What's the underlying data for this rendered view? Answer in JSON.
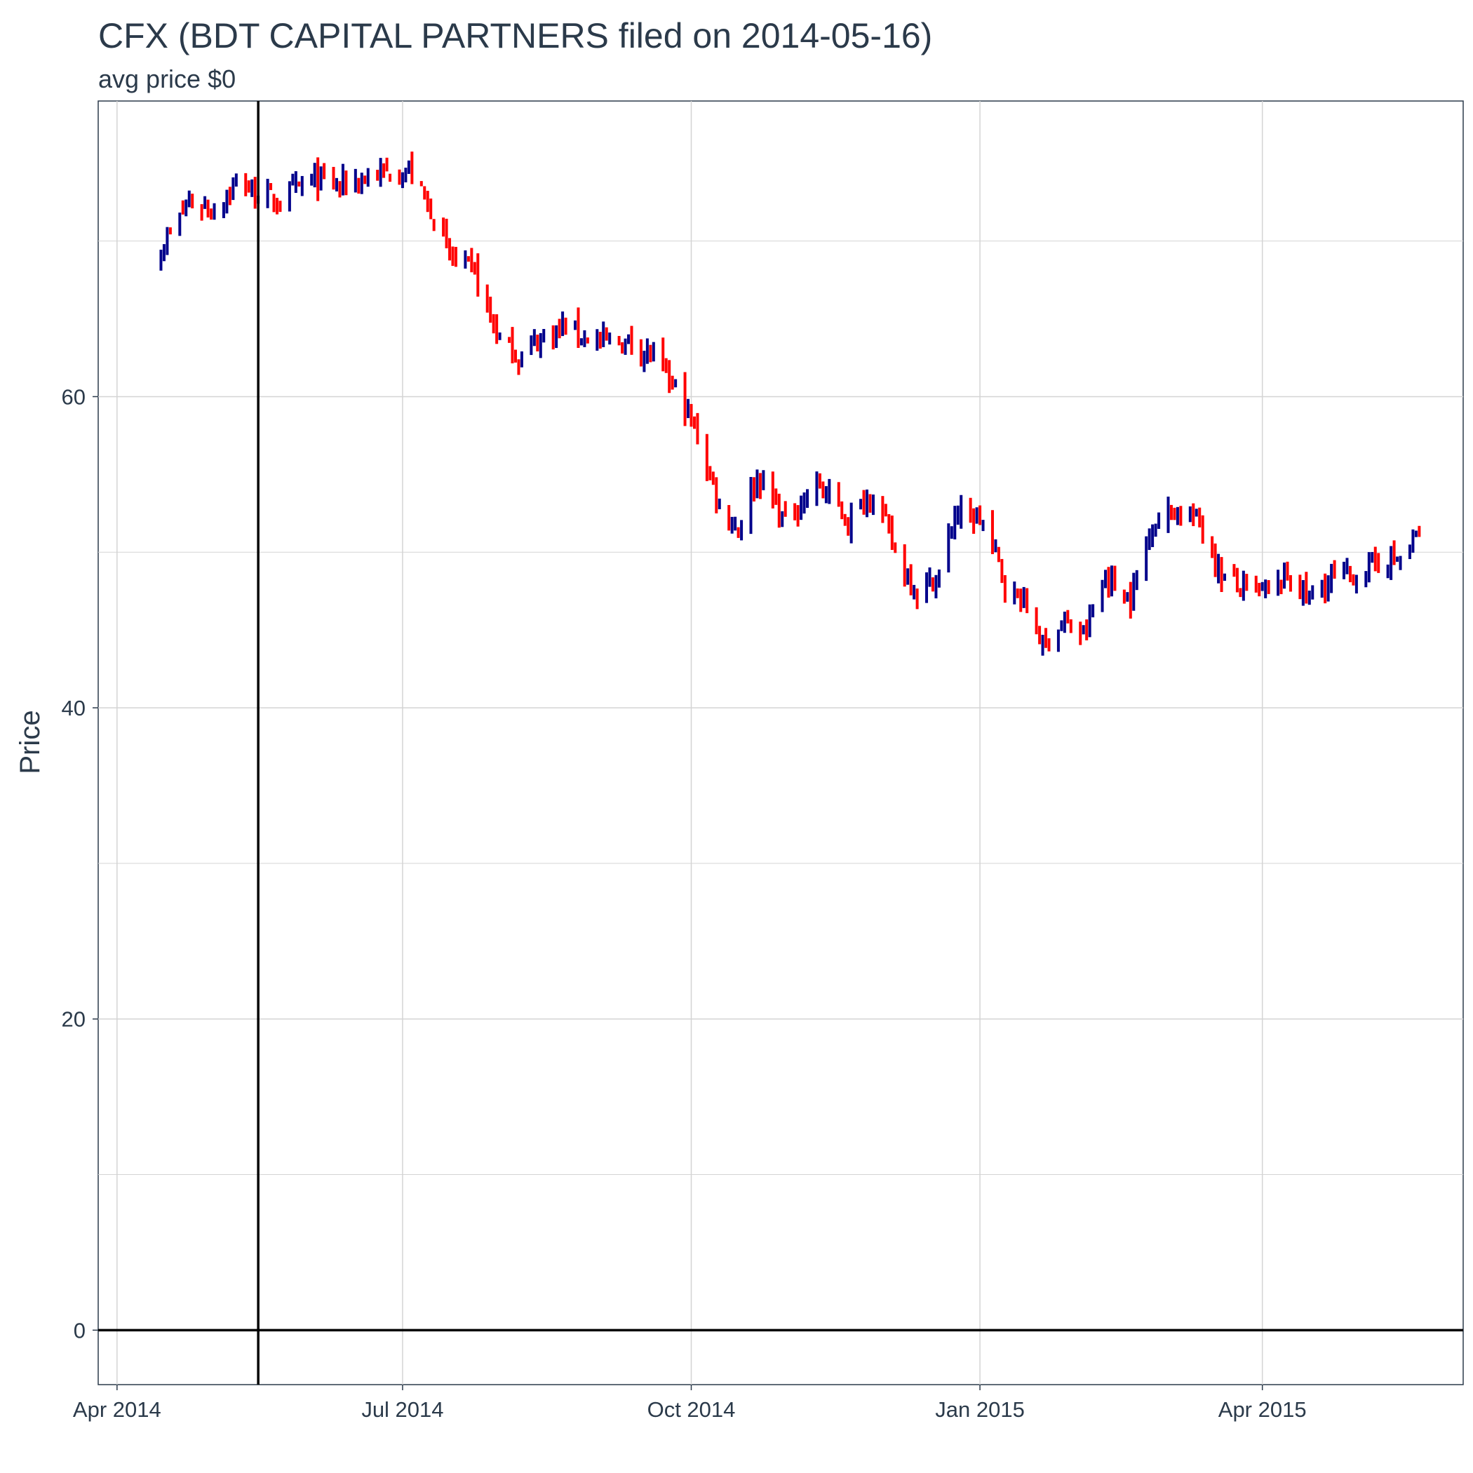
{
  "chart_data": {
    "type": "ohlc",
    "title": "CFX (BDT CAPITAL PARTNERS filed on 2014-05-16)",
    "subtitle": "avg price $0",
    "xlabel": "",
    "ylabel": "Price",
    "x_range": [
      "2014-03-26",
      "2015-06-04"
    ],
    "ylim": [
      -3.5,
      79
    ],
    "x_ticks": [
      {
        "date": "2014-04-01",
        "label": "Apr 2014"
      },
      {
        "date": "2014-07-01",
        "label": "Jul 2014"
      },
      {
        "date": "2014-10-01",
        "label": "Oct 2014"
      },
      {
        "date": "2015-01-01",
        "label": "Jan 2015"
      },
      {
        "date": "2015-04-01",
        "label": "Apr 2015"
      }
    ],
    "y_ticks": [
      0,
      20,
      40,
      60
    ],
    "y_minor_gridlines": [
      10,
      30,
      50,
      70
    ],
    "grid": true,
    "reference_lines": [
      {
        "orientation": "vertical",
        "date": "2014-05-16"
      },
      {
        "orientation": "horizontal",
        "value": 0
      }
    ],
    "colors": {
      "up": "#00008b",
      "down": "#ff0000",
      "grid": "#d4d4d4",
      "reference": "#000000"
    },
    "anchors": [
      [
        "2014-04-15",
        69.5
      ],
      [
        "2014-04-24",
        72.5
      ],
      [
        "2014-05-02",
        72.0
      ],
      [
        "2014-05-09",
        73.8
      ],
      [
        "2014-05-16",
        73.0
      ],
      [
        "2014-05-23",
        72.5
      ],
      [
        "2014-06-02",
        74.0
      ],
      [
        "2014-06-11",
        73.6
      ],
      [
        "2014-06-23",
        74.3
      ],
      [
        "2014-07-03",
        74.5
      ],
      [
        "2014-07-10",
        72.0
      ],
      [
        "2014-07-16",
        69.0
      ],
      [
        "2014-07-24",
        68.0
      ],
      [
        "2014-07-31",
        64.0
      ],
      [
        "2014-08-07",
        62.5
      ],
      [
        "2014-08-15",
        64.0
      ],
      [
        "2014-08-22",
        64.5
      ],
      [
        "2014-09-02",
        63.5
      ],
      [
        "2014-09-12",
        63.5
      ],
      [
        "2014-09-19",
        62.5
      ],
      [
        "2014-09-26",
        60.5
      ],
      [
        "2014-10-03",
        57.5
      ],
      [
        "2014-10-10",
        53.0
      ],
      [
        "2014-10-16",
        51.5
      ],
      [
        "2014-10-22",
        55.0
      ],
      [
        "2014-10-31",
        52.0
      ],
      [
        "2014-11-10",
        54.5
      ],
      [
        "2014-11-20",
        52.0
      ],
      [
        "2014-11-28",
        54.0
      ],
      [
        "2014-12-05",
        50.0
      ],
      [
        "2014-12-12",
        47.5
      ],
      [
        "2014-12-19",
        48.5
      ],
      [
        "2014-12-24",
        52.5
      ],
      [
        "2015-01-02",
        52.0
      ],
      [
        "2015-01-09",
        48.0
      ],
      [
        "2015-01-16",
        46.5
      ],
      [
        "2015-01-21",
        44.0
      ],
      [
        "2015-01-27",
        45.5
      ],
      [
        "2015-02-03",
        44.5
      ],
      [
        "2015-02-10",
        48.5
      ],
      [
        "2015-02-18",
        47.0
      ],
      [
        "2015-02-25",
        52.0
      ],
      [
        "2015-03-05",
        52.8
      ],
      [
        "2015-03-12",
        52.0
      ],
      [
        "2015-03-19",
        48.5
      ],
      [
        "2015-03-27",
        47.5
      ],
      [
        "2015-04-03",
        47.5
      ],
      [
        "2015-04-10",
        48.5
      ],
      [
        "2015-04-16",
        47.0
      ],
      [
        "2015-04-24",
        48.5
      ],
      [
        "2015-05-01",
        48.5
      ],
      [
        "2015-05-08",
        49.5
      ],
      [
        "2015-05-15",
        49.5
      ],
      [
        "2015-05-21",
        51.2
      ]
    ]
  }
}
